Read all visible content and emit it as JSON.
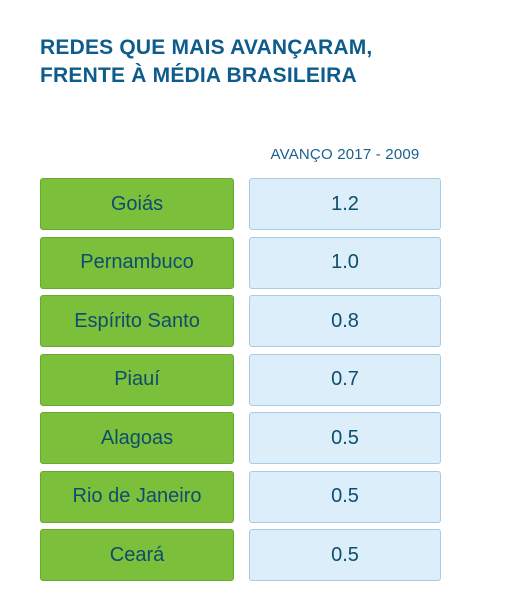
{
  "title": {
    "line1": "REDES QUE MAIS AVANÇARAM,",
    "line2": "FRENTE À MÉDIA BRASILEIRA"
  },
  "chart_data": {
    "type": "table",
    "title": "REDES QUE MAIS AVANÇARAM, FRENTE À MÉDIA BRASILEIRA",
    "columns": [
      "",
      "AVANÇO 2017 - 2009"
    ],
    "value_header": "AVANÇO 2017 - 2009",
    "categories": [
      "Goiás",
      "Pernambuco",
      "Espírito Santo",
      "Piauí",
      "Alagoas",
      "Rio de Janeiro",
      "Ceará"
    ],
    "values": [
      "1.2",
      "1.0",
      "0.8",
      "0.7",
      "0.5",
      "0.5",
      "0.5"
    ],
    "colors": {
      "title": "#0d5c8c",
      "state_cell": "#7cbf3a",
      "value_cell": "#dbeefa",
      "text": "#0e4d6e"
    }
  }
}
